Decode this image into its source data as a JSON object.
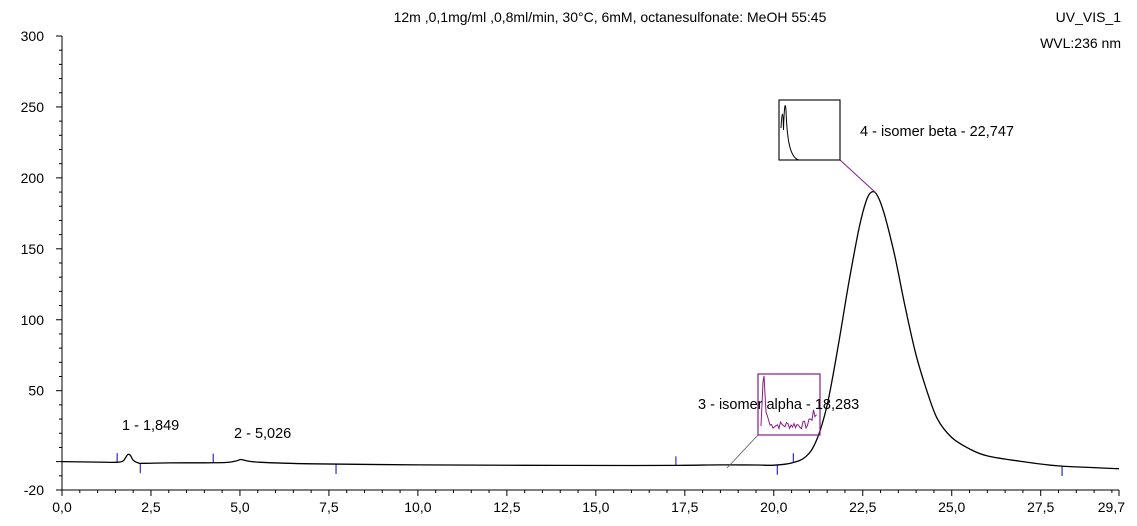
{
  "chart_data": {
    "type": "line",
    "title": "12m ,0,1mg/ml ,0,8ml/min, 30°C, 6mM, octanesulfonate: MeOH 55:45",
    "channel": "UV_VIS_1",
    "wavelength": "WVL:236 nm",
    "xlim": [
      0,
      29.7
    ],
    "ylim": [
      -20,
      300
    ],
    "x_ticks": [
      "0,0",
      "2,5",
      "5,0",
      "7,5",
      "10,0",
      "12,5",
      "15,0",
      "17,5",
      "20,0",
      "22,5",
      "25,0",
      "27,5",
      "29,7"
    ],
    "x_tick_values": [
      0,
      2.5,
      5.0,
      7.5,
      10.0,
      12.5,
      15.0,
      17.5,
      20.0,
      22.5,
      25.0,
      27.5,
      29.7
    ],
    "y_ticks": [
      "-20",
      "50",
      "100",
      "150",
      "200",
      "250",
      "300"
    ],
    "y_tick_values": [
      -20,
      50,
      100,
      150,
      200,
      250,
      300
    ],
    "series": [
      {
        "x": [
          0.0,
          1.0,
          1.5,
          1.7,
          1.78,
          1.85,
          1.92,
          2.0,
          2.15,
          2.3,
          3.0,
          4.0,
          4.6,
          4.9,
          5.03,
          5.2,
          5.6,
          7.0,
          10.0,
          13.0,
          16.0,
          17.5,
          18.5,
          19.5,
          20.0,
          20.5,
          20.9,
          21.2,
          21.5,
          21.8,
          22.1,
          22.4,
          22.6,
          22.747,
          22.9,
          23.1,
          23.4,
          23.7,
          24.0,
          24.3,
          24.6,
          25.0,
          25.5,
          26.0,
          27.0,
          28.0,
          29.7
        ],
        "y": [
          0.0,
          -0.3,
          -0.5,
          0.2,
          2.5,
          5.0,
          4.5,
          1.0,
          -1.0,
          -1.2,
          -0.9,
          -0.8,
          -0.6,
          0.5,
          1.5,
          0.5,
          -0.5,
          -1.5,
          -2.3,
          -2.6,
          -2.7,
          -2.6,
          -2.3,
          -2.4,
          -2.5,
          -1.0,
          3.5,
          15.0,
          40.0,
          80.0,
          125.0,
          165.0,
          184.0,
          190.0,
          188.0,
          175.0,
          145.0,
          108.0,
          75.0,
          50.0,
          30.0,
          17.0,
          9.0,
          4.0,
          0.0,
          -3.0,
          -5.0
        ]
      }
    ],
    "peaks": [
      {
        "number": "1",
        "time": "1,849",
        "label": "1 - 1,849"
      },
      {
        "number": "2",
        "time": "5,026",
        "label": "2 - 5,026"
      },
      {
        "number": "3",
        "name": "isomer alpha",
        "time": "18,283",
        "label": "3 - isomer alpha - 18,283"
      },
      {
        "number": "4",
        "name": "isomer beta",
        "time": "22,747",
        "label": "4 - isomer beta - 22,747"
      }
    ],
    "integration_marks_x": [
      1.55,
      2.2,
      4.25,
      7.7,
      17.25,
      20.1,
      20.55,
      28.1
    ],
    "colors": {
      "trace": "#000000",
      "marks": "#2b2bd9",
      "inset_alpha": "#8a1a8a",
      "inset_beta": "#000000"
    },
    "grid": false
  }
}
